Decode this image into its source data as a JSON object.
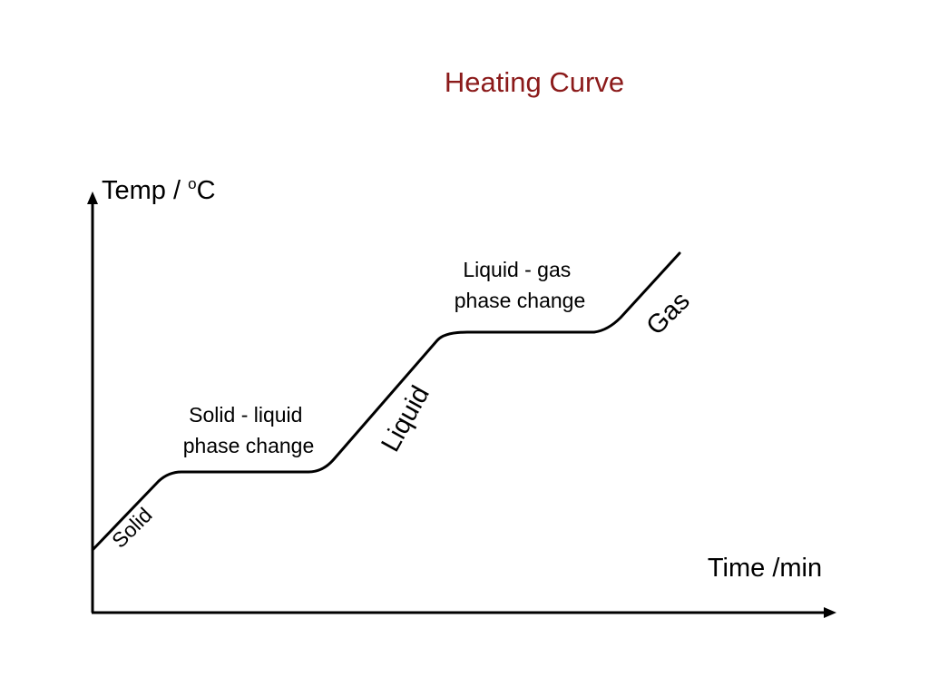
{
  "slide": {
    "title": "Heating Curve",
    "title_color": "#8b1a1a",
    "text_color": "#000000"
  },
  "axes": {
    "y_label_prefix": "Temp / ",
    "y_label_superscript": "o",
    "y_label_suffix": "C",
    "x_label": "Time /min"
  },
  "annotations": {
    "solid_liquid": [
      "Solid - liquid",
      "phase change"
    ],
    "liquid_gas": [
      "Liquid - gas",
      "phase change"
    ]
  },
  "states": {
    "solid": "Solid",
    "liquid": "Liquid",
    "gas": "Gas"
  }
}
